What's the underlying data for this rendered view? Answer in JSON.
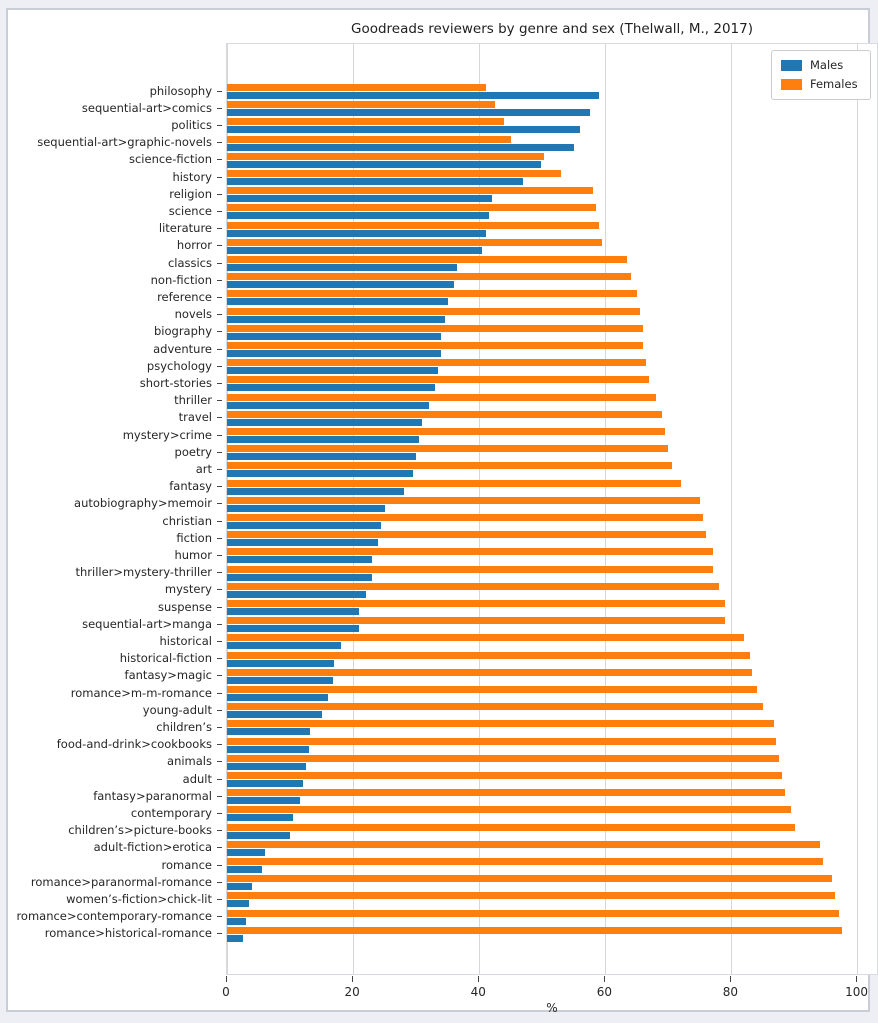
{
  "figure": {
    "title": "Goodreads reviewers by genre and sex (Thelwall, M., 2017)",
    "xlabel": "%"
  },
  "legend": {
    "items": [
      {
        "label": "Males",
        "color": "#1f77b4"
      },
      {
        "label": "Females",
        "color": "#ff7f0e"
      }
    ]
  },
  "colors": {
    "males": "#1f77b4",
    "females": "#ff7f0e",
    "page_background": "#edeff4",
    "figure_background": "#ffffff",
    "gridline": "#d4d6da",
    "frame_border": "#c9cdd5"
  },
  "chart_data": {
    "type": "bar",
    "orientation": "horizontal",
    "title": "Goodreads reviewers by genre and sex (Thelwall, M., 2017)",
    "xlabel": "%",
    "ylabel": "",
    "xlim": [
      0,
      103.4
    ],
    "xticks": [
      0,
      20,
      40,
      60,
      80,
      100
    ],
    "grid": true,
    "legend_position": "upper right",
    "bar_order_note": "Females bar drawn above Males bar for each genre; genres sorted by male share descending",
    "categories": [
      "philosophy",
      "sequential-art>comics",
      "politics",
      "sequential-art>graphic-novels",
      "science-fiction",
      "history",
      "religion",
      "science",
      "literature",
      "horror",
      "classics",
      "non-fiction",
      "reference",
      "novels",
      "biography",
      "adventure",
      "psychology",
      "short-stories",
      "thriller",
      "travel",
      "mystery>crime",
      "poetry",
      "art",
      "fantasy",
      "autobiography>memoir",
      "christian",
      "fiction",
      "humor",
      "thriller>mystery-thriller",
      "mystery",
      "suspense",
      "sequential-art>manga",
      "historical",
      "historical-fiction",
      "fantasy>magic",
      "romance>m-m-romance",
      "young-adult",
      "children’s",
      "food-and-drink>cookbooks",
      "animals",
      "adult",
      "fantasy>paranormal",
      "contemporary",
      "children’s>picture-books",
      "adult-fiction>erotica",
      "romance",
      "romance>paranormal-romance",
      "women’s-fiction>chick-lit",
      "romance>contemporary-romance",
      "romance>historical-romance"
    ],
    "series": [
      {
        "name": "Males",
        "color": "#1f77b4",
        "values": [
          59,
          57.5,
          56,
          55,
          49.8,
          47,
          42,
          41.5,
          41,
          40.5,
          36.5,
          36,
          35,
          34.5,
          34,
          34,
          33.5,
          33,
          32,
          31,
          30.5,
          30,
          29.5,
          28,
          25,
          24.5,
          24,
          23,
          23,
          22,
          21,
          21,
          18,
          17,
          16.8,
          16,
          15,
          13.2,
          13,
          12.5,
          12,
          11.5,
          10.5,
          10,
          6,
          5.5,
          4,
          3.5,
          3,
          2.5
        ]
      },
      {
        "name": "Females",
        "color": "#ff7f0e",
        "values": [
          41,
          42.5,
          44,
          45,
          50.2,
          53,
          58,
          58.5,
          59,
          59.5,
          63.5,
          64,
          65,
          65.5,
          66,
          66,
          66.5,
          67,
          68,
          69,
          69.5,
          70,
          70.5,
          72,
          75,
          75.5,
          76,
          77,
          77,
          78,
          79,
          79,
          82,
          83,
          83.2,
          84,
          85,
          86.8,
          87,
          87.5,
          88,
          88.5,
          89.5,
          90,
          94,
          94.5,
          96,
          96.5,
          97,
          97.5
        ]
      }
    ]
  }
}
